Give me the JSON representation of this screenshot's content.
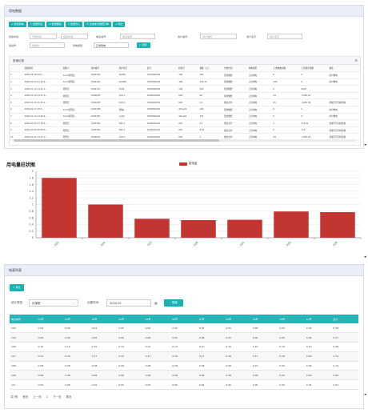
{
  "panel1": {
    "title": "用电数据",
    "toolbar": [
      {
        "label": "新增用电",
        "icon": "plus-icon"
      },
      {
        "label": "批量导出",
        "icon": "export-icon"
      },
      {
        "label": "批量删除",
        "icon": "delete-icon"
      },
      {
        "label": "批量导入",
        "icon": "import-icon"
      },
      {
        "label": "生成本月缴费订单",
        "icon": "order-icon"
      },
      {
        "label": "导出",
        "icon": "download-icon"
      }
    ],
    "filters": {
      "date_label": "创建时间:",
      "date_start": "开始时间",
      "date_end": "结束时间",
      "meter_label": "电表编号:",
      "meter_placeholder": "电表编号",
      "user_no_label": "用户编号:",
      "user_no_placeholder": "用户编号",
      "user_name_label": "用户名字:",
      "user_name_placeholder": "用户名字",
      "station_label": "用站号:",
      "station_placeholder": "用站号",
      "type_label": "用电类型:",
      "type_value": "正常用电",
      "search": "搜索"
    },
    "records_title": "查询记录",
    "columns": [
      "",
      "创建时间",
      "创建人",
      "用户编号",
      "用户名字",
      "表号",
      "抄表号",
      "金额（元）",
      "付款方式",
      "用电类型",
      "上次电电示数",
      "上次累计金额",
      "备注"
    ],
    "rows": [
      [
        "1",
        "2020-02-19 09:0...",
        "Acms管理员",
        "0190192",
        "test01",
        "0190360204",
        "100",
        "100",
        "现金缴费",
        "正常用电",
        "0",
        "0",
        "用户缴电"
      ],
      [
        "2",
        "2020-02-24 21:21:4...",
        "Acms管理员",
        "0190191",
        "test001",
        "0190360204",
        "106",
        "322.42",
        "现金缴费",
        "正常用电",
        "106",
        "0",
        "用户缴电"
      ],
      [
        "3",
        "2020-01-14 14:21:1...",
        "管理员",
        "0190131",
        "0192",
        "0190360204",
        "106",
        "100",
        "现金缴费",
        "正常用电",
        "0",
        "0001",
        ""
      ],
      [
        "4",
        "2020-01-14 14:17:0...",
        "管理员",
        "0190093",
        "018-1",
        "0190201801",
        "018",
        "90",
        "现金缴费",
        "正常用电",
        "44",
        "-2456.49",
        ""
      ],
      [
        "5",
        "2020-01-10 11:25:2...",
        "管理员",
        "0190093",
        "018-1",
        "0190201801",
        "018",
        "0.1",
        "微信支付",
        "正常用电",
        "55",
        "-2456.39",
        "金额不足扣除金额"
      ],
      [
        "6",
        "2020-01-17 15:5...",
        "Acms管理员",
        "0190188",
        "测站1",
        "0190360201",
        "dsfuy01",
        "100",
        "现金缴费",
        "正常用电",
        "0",
        "0",
        "用户缴电"
      ],
      [
        "7",
        "2020-01-13 14:42:4...",
        "Acms管理员",
        "0190187",
        "caidd",
        "0190360201",
        "dsfuy01",
        "333",
        "现金缴费",
        "正常用电",
        "0",
        "0",
        "用户缴电"
      ],
      [
        "8",
        "2020-01-03 17:14:4...",
        "管理员",
        "0190181",
        "022-1",
        "0190202201",
        "022",
        "0.1",
        "微信支付",
        "正常用电",
        "1",
        "115.01",
        "金额不足扣除金额"
      ],
      [
        "9",
        "2020-01-03 09:28:0...",
        "管理员",
        "0190181",
        "022-1",
        "0190202201",
        "022",
        "0.01",
        "微信支付",
        "正常用电",
        "0",
        "115",
        "金额不足扣除金额"
      ],
      [
        "10",
        "2020-01-02 14:17:0...",
        "管理员",
        "0190093",
        "018-1",
        "0190201801",
        "018",
        "1",
        "微信支付",
        "正常用电",
        "44",
        "-2456.29",
        "金额不足扣除金额"
      ]
    ]
  },
  "chart_data": {
    "type": "bar",
    "title": "用电量柱状图",
    "legend": [
      "用电量"
    ],
    "categories": [
      "102",
      "106",
      "103",
      "104",
      "101",
      "105",
      "108"
    ],
    "series": [
      {
        "name": "用电量",
        "values": [
          1.8,
          1.0,
          0.57,
          0.53,
          0.54,
          0.79,
          0.77
        ]
      }
    ],
    "ylim": [
      0,
      2
    ],
    "yticks": [
      "0",
      "0.2",
      "0.4",
      "0.6",
      "0.8",
      "1",
      "1.2",
      "1.4",
      "1.6",
      "1.8",
      "2"
    ],
    "color": "#c23531"
  },
  "panel3": {
    "title": "电表列表",
    "export": "导出",
    "stat_type_label": "统计类型:",
    "stat_type_value": "月报表",
    "date_label": "创建时间:",
    "date_value": "2020-02",
    "search": "搜索",
    "columns": [
      "电表编号",
      "01号",
      "02号",
      "03号",
      "04号",
      "05号",
      "06号",
      "07号",
      "08号",
      "09号",
      "10号",
      "11号",
      "合计"
    ],
    "rows": [
      [
        "102",
        "0.04",
        "0.06",
        "0.04",
        "0.05",
        "0.05",
        "0.05",
        "0.05",
        "0.05",
        "0.05",
        "0.05",
        "0.05",
        "0.49"
      ],
      [
        "103",
        "0.06",
        "0.06",
        "0.05",
        "0.06",
        "0.06",
        "0.05",
        "0.06",
        "0.05",
        "0.05",
        "0.05",
        "0.05",
        "0.57"
      ],
      [
        "106",
        "0.10",
        "0.10",
        "0.10",
        "0.10",
        "0.10",
        "0.10",
        "0.10",
        "0.10",
        "0.10",
        "0.10",
        "0.10",
        "0.98"
      ],
      [
        "107",
        "0.22",
        "0.20",
        "0.17",
        "0.16",
        "0.17",
        "0.16",
        "0.17",
        "0.16",
        "0.17",
        "0.16",
        "0.00",
        "1.74"
      ],
      [
        "108",
        "0.08",
        "0.08",
        "0.08",
        "0.08",
        "0.08",
        "0.08",
        "0.08",
        "0.08",
        "0.07",
        "0.00",
        "0.00",
        "0.79"
      ],
      [
        "109",
        "0.08",
        "0.08",
        "0.08",
        "0.08",
        "0.08",
        "0.08",
        "0.08",
        "0.08",
        "0.08",
        "0.00",
        "0.00",
        "0.80"
      ],
      [
        "111",
        "0.05",
        "0.06",
        "0.05",
        "0.05",
        "0.05",
        "0.05",
        "0.05",
        "0.05",
        "0.05",
        "0.05",
        "0.05",
        "0.53"
      ]
    ],
    "pager": {
      "total": "共7条",
      "first": "首页",
      "prev": "上一页",
      "page": "1",
      "next": "下一页",
      "last": "尾页"
    }
  }
}
